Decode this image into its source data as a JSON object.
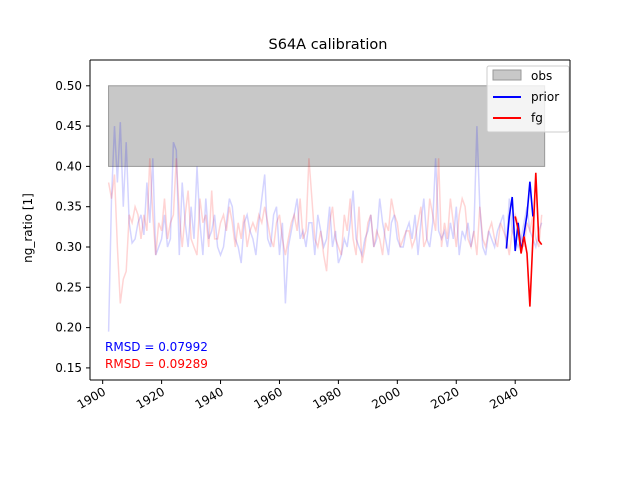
{
  "chart_data": {
    "type": "line",
    "title": "S64A calibration",
    "ylabel": "ng_ratio [1]",
    "xlabel": "",
    "xlim": [
      1895.7,
      2058.6
    ],
    "ylim": [
      0.135,
      0.532
    ],
    "xticks": [
      1900,
      1920,
      1940,
      1960,
      1980,
      2000,
      2020,
      2040
    ],
    "yticks": [
      0.15,
      0.2,
      0.25,
      0.3,
      0.35,
      0.4,
      0.45,
      0.5
    ],
    "ytick_labels": [
      "0.15",
      "0.20",
      "0.25",
      "0.30",
      "0.35",
      "0.40",
      "0.45",
      "0.50"
    ],
    "grid": false,
    "legend_position": "top-right",
    "obs_band": {
      "name": "obs",
      "x": [
        1902,
        2050
      ],
      "y": [
        0.4,
        0.5
      ],
      "color": "#c8c8c8"
    },
    "series": [
      {
        "name": "prior",
        "color": "#0000ff",
        "start_year": 1902,
        "values": [
          0.195,
          0.36,
          0.45,
          0.38,
          0.455,
          0.35,
          0.43,
          0.33,
          0.305,
          0.31,
          0.33,
          0.34,
          0.315,
          0.38,
          0.33,
          0.41,
          0.29,
          0.3,
          0.31,
          0.34,
          0.3,
          0.31,
          0.43,
          0.42,
          0.29,
          0.38,
          0.33,
          0.3,
          0.35,
          0.31,
          0.4,
          0.33,
          0.29,
          0.36,
          0.31,
          0.32,
          0.34,
          0.3,
          0.29,
          0.3,
          0.33,
          0.36,
          0.35,
          0.31,
          0.3,
          0.28,
          0.33,
          0.34,
          0.32,
          0.31,
          0.29,
          0.33,
          0.36,
          0.39,
          0.31,
          0.3,
          0.34,
          0.35,
          0.29,
          0.33,
          0.23,
          0.3,
          0.32,
          0.34,
          0.36,
          0.31,
          0.32,
          0.3,
          0.33,
          0.33,
          0.29,
          0.34,
          0.32,
          0.3,
          0.31,
          0.35,
          0.3,
          0.32,
          0.28,
          0.29,
          0.31,
          0.3,
          0.33,
          0.37,
          0.31,
          0.3,
          0.29,
          0.31,
          0.32,
          0.34,
          0.3,
          0.31,
          0.36,
          0.33,
          0.31,
          0.29,
          0.33,
          0.34,
          0.31,
          0.3,
          0.3,
          0.32,
          0.33,
          0.31,
          0.34,
          0.29,
          0.33,
          0.36,
          0.31,
          0.3,
          0.33,
          0.41,
          0.32,
          0.31,
          0.32,
          0.3,
          0.33,
          0.31,
          0.35,
          0.29,
          0.32,
          0.31,
          0.33,
          0.3,
          0.32,
          0.45,
          0.35,
          0.3,
          0.29,
          0.32,
          0.31,
          0.3,
          0.32,
          0.33,
          0.34,
          0.3,
          0.36,
          0.32,
          0.31,
          0.3,
          0.31,
          0.33,
          0.35,
          0.32,
          0.31,
          0.3,
          0.32,
          0.33
        ],
        "highlight_start_year": 2037,
        "highlight_values": [
          0.298,
          0.338,
          0.362,
          0.295,
          0.33,
          0.295,
          0.316,
          0.34,
          0.381,
          0.338
        ]
      },
      {
        "name": "fg",
        "color": "#ff0000",
        "start_year": 1902,
        "values": [
          0.38,
          0.36,
          0.39,
          0.3,
          0.23,
          0.26,
          0.27,
          0.34,
          0.33,
          0.35,
          0.34,
          0.31,
          0.34,
          0.32,
          0.41,
          0.34,
          0.29,
          0.33,
          0.32,
          0.36,
          0.31,
          0.33,
          0.34,
          0.41,
          0.34,
          0.3,
          0.34,
          0.37,
          0.31,
          0.3,
          0.29,
          0.36,
          0.33,
          0.34,
          0.3,
          0.37,
          0.31,
          0.31,
          0.33,
          0.34,
          0.32,
          0.35,
          0.33,
          0.3,
          0.33,
          0.31,
          0.34,
          0.3,
          0.32,
          0.33,
          0.32,
          0.34,
          0.33,
          0.35,
          0.33,
          0.31,
          0.3,
          0.33,
          0.34,
          0.31,
          0.29,
          0.31,
          0.33,
          0.34,
          0.32,
          0.36,
          0.31,
          0.32,
          0.41,
          0.36,
          0.31,
          0.3,
          0.32,
          0.29,
          0.27,
          0.33,
          0.35,
          0.31,
          0.3,
          0.29,
          0.34,
          0.32,
          0.36,
          0.31,
          0.29,
          0.35,
          0.28,
          0.3,
          0.33,
          0.34,
          0.3,
          0.32,
          0.31,
          0.29,
          0.33,
          0.32,
          0.36,
          0.34,
          0.33,
          0.3,
          0.31,
          0.32,
          0.32,
          0.3,
          0.31,
          0.33,
          0.35,
          0.3,
          0.31,
          0.36,
          0.34,
          0.32,
          0.41,
          0.3,
          0.33,
          0.31,
          0.36,
          0.33,
          0.3,
          0.34,
          0.36,
          0.35,
          0.31,
          0.3,
          0.32,
          0.29,
          0.35,
          0.31,
          0.3,
          0.32,
          0.33,
          0.31,
          0.3,
          0.33,
          0.32,
          0.31,
          0.29,
          0.32,
          0.34,
          0.33,
          0.31,
          0.3,
          0.33,
          0.32,
          0.34,
          0.31,
          0.3,
          0.34
        ],
        "highlight_start_year": 2040,
        "highlight_values": [
          0.338,
          0.322,
          0.292,
          0.313,
          0.292,
          0.226,
          0.31,
          0.392,
          0.308,
          0.303
        ]
      }
    ],
    "annotations": [
      {
        "text": "RMSD = 0.07992",
        "color": "#0000ff"
      },
      {
        "text": "RMSD = 0.09289",
        "color": "#ff0000"
      }
    ]
  }
}
